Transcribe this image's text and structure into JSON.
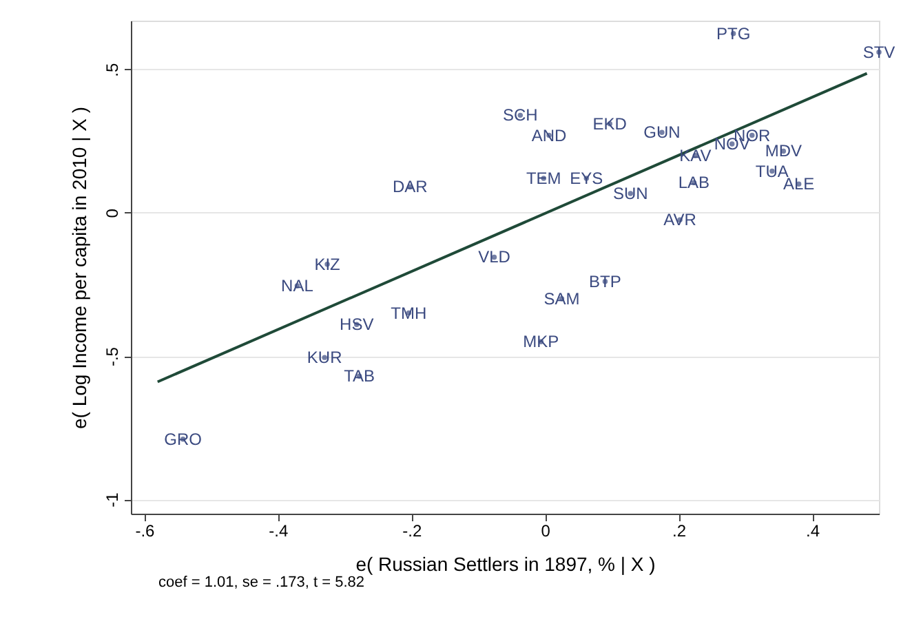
{
  "chart_data": {
    "type": "scatter",
    "xlabel": "e( Russian Settlers in 1897, % | X )",
    "ylabel": "e( Log Income per capita in 2010 | X )",
    "xlim": [
      -0.62,
      0.5
    ],
    "ylim": [
      -1.05,
      0.67
    ],
    "xticks": [
      {
        "value": -0.6,
        "label": "-.6"
      },
      {
        "value": -0.4,
        "label": "-.4"
      },
      {
        "value": -0.2,
        "label": "-.2"
      },
      0,
      {
        "value": 0.2,
        "label": ".2"
      },
      {
        "value": 0.4,
        "label": ".4"
      }
    ],
    "yticks": [
      {
        "value": -1,
        "label": "-1"
      },
      {
        "value": -0.5,
        "label": "-.5"
      },
      0,
      {
        "value": 0.5,
        "label": ".5"
      }
    ],
    "grid": "y",
    "series": [
      {
        "color": "#3b4a80",
        "marker": "circle",
        "x": [
          0.282,
          0.5,
          -0.037,
          0.006,
          0.097,
          0.175,
          0.225,
          0.28,
          0.31,
          0.357,
          -0.002,
          0.062,
          0.128,
          0.223,
          0.34,
          0.38,
          0.202,
          -0.202,
          -0.326,
          -0.371,
          -0.076,
          0.09,
          0.025,
          -0.006,
          -0.282,
          -0.204,
          -0.33,
          -0.278,
          -0.542
        ],
        "values": [
          0.625,
          0.56,
          0.34,
          0.27,
          0.31,
          0.28,
          0.2,
          0.24,
          0.27,
          0.215,
          0.12,
          0.12,
          0.067,
          0.105,
          0.145,
          0.1,
          -0.025,
          0.09,
          -0.18,
          -0.255,
          -0.155,
          -0.24,
          -0.3,
          -0.45,
          -0.39,
          -0.35,
          -0.505,
          -0.57,
          -0.79
        ],
        "value_labels": [
          "PTG",
          "STV",
          "SCH",
          "AND",
          "EKD",
          "GUN",
          "KAV",
          "NOV",
          "NOR",
          "MDV",
          "TEM",
          "EYS",
          "SUN",
          "LAB",
          "TUA",
          "ALE",
          "AVR",
          "DAR",
          "KIZ",
          "NAL",
          "VLD",
          "BTP",
          "SAM",
          "MKP",
          "HSV",
          "TMH",
          "KUR",
          "TAB",
          "GRO"
        ]
      },
      {
        "type": "line",
        "color": "#1f4a38",
        "x": [
          -0.58,
          0.482
        ],
        "values": [
          -0.59,
          0.486
        ]
      }
    ],
    "annotations": [
      "coef = 1.01, se = .173, t = 5.82"
    ]
  }
}
